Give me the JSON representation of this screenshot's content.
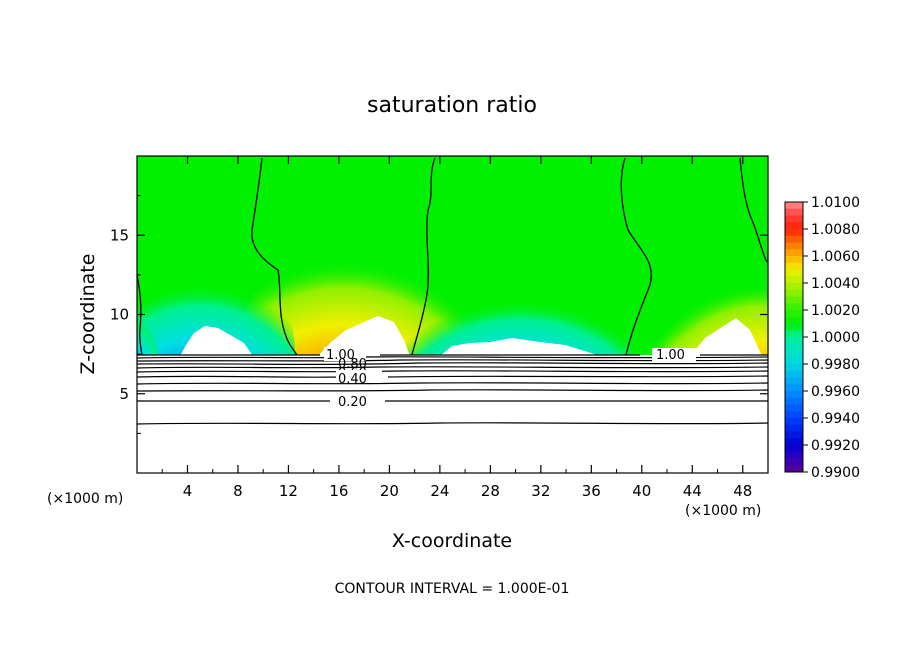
{
  "chart_data": {
    "type": "heatmap",
    "title": "saturation ratio",
    "xlabel": "X-coordinate",
    "ylabel": "Z-coordinate",
    "x_unit": "(×1000 m)",
    "z_unit": "(×1000 m)",
    "xlim": [
      0,
      50
    ],
    "ylim": [
      0,
      20
    ],
    "x_ticks": [
      "4",
      "8",
      "12",
      "16",
      "20",
      "24",
      "28",
      "32",
      "36",
      "40",
      "44",
      "48"
    ],
    "y_ticks": [
      "5",
      "10",
      "15"
    ],
    "colorbar": {
      "min": 0.99,
      "max": 1.01,
      "labels": [
        "1.0100",
        "1.0080",
        "1.0060",
        "1.0040",
        "1.0020",
        "1.0000",
        "0.9980",
        "0.9960",
        "0.9940",
        "0.9920",
        "0.9900"
      ]
    },
    "contour_labels": [
      "1.00",
      "0.80",
      "0.60",
      "0.40",
      "0.20",
      "1.00"
    ],
    "footer": "CONTOUR INTERVAL = 1.000E-01"
  }
}
